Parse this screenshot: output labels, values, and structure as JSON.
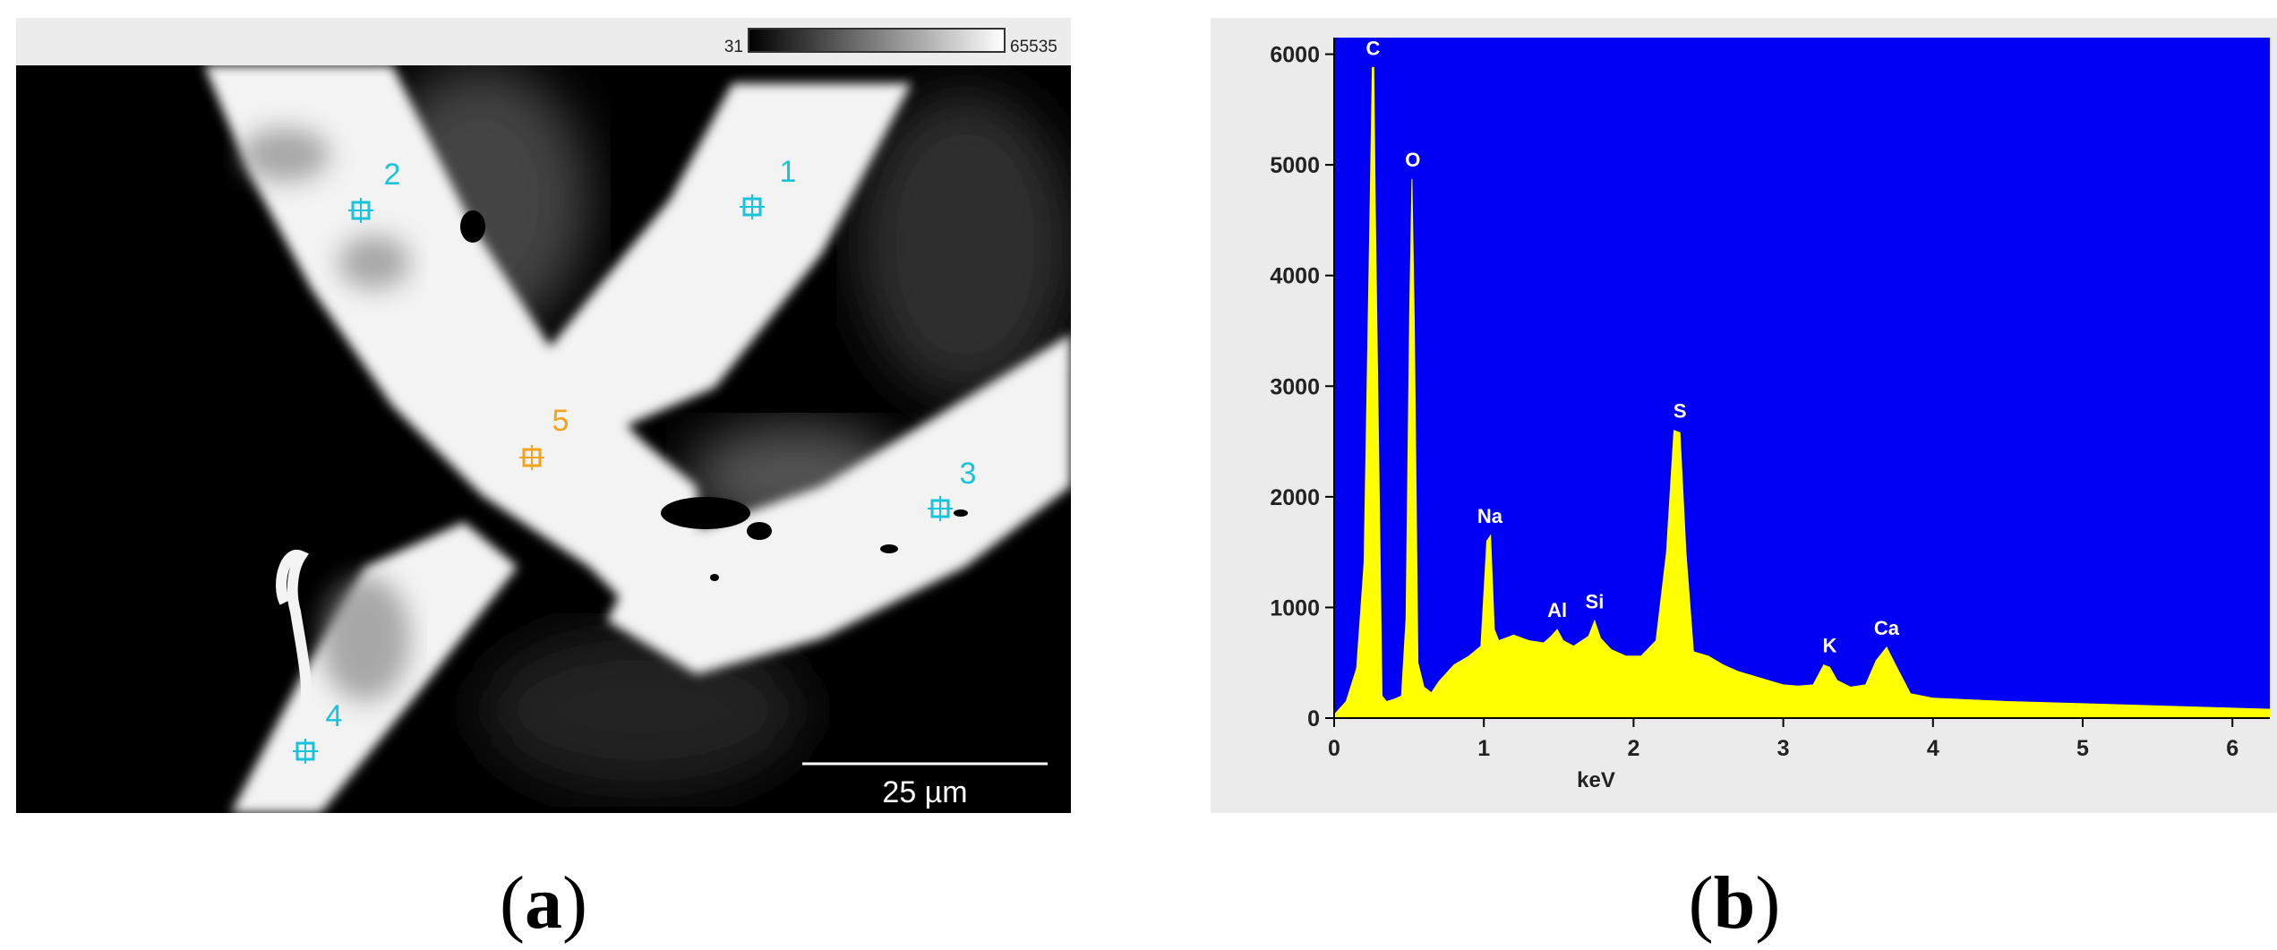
{
  "panel_a": {
    "colorbar": {
      "min_label": "31",
      "max_label": "65535"
    },
    "points": [
      {
        "label": "1",
        "color": "#19c3d9"
      },
      {
        "label": "2",
        "color": "#19c3d9"
      },
      {
        "label": "3",
        "color": "#19c3d9"
      },
      {
        "label": "4",
        "color": "#19c3d9"
      },
      {
        "label": "5",
        "color": "#f3a21e"
      }
    ],
    "scale_bar_label": "25 µm",
    "caption_open": "(",
    "caption_letter": "a",
    "caption_close": ")"
  },
  "panel_b": {
    "caption_open": "(",
    "caption_letter": "b",
    "caption_close": ")"
  },
  "colors": {
    "plot_bg": "#0000f5",
    "spectrum": "#ffff00",
    "frame_bg": "#ebebeb"
  },
  "chart_data": {
    "type": "area",
    "title": "",
    "xlabel": "keV",
    "ylabel": "",
    "xlim": [
      0,
      6.25
    ],
    "ylim": [
      0,
      6150
    ],
    "xticks": [
      0,
      1,
      2,
      3,
      4,
      5,
      6
    ],
    "yticks": [
      0,
      1000,
      2000,
      3000,
      4000,
      5000,
      6000
    ],
    "grid": false,
    "x": [
      0,
      0.08,
      0.15,
      0.2,
      0.24,
      0.255,
      0.265,
      0.275,
      0.32,
      0.35,
      0.4,
      0.45,
      0.48,
      0.505,
      0.52,
      0.535,
      0.56,
      0.6,
      0.65,
      0.7,
      0.8,
      0.9,
      0.98,
      1.02,
      1.045,
      1.07,
      1.1,
      1.2,
      1.3,
      1.4,
      1.45,
      1.49,
      1.53,
      1.6,
      1.7,
      1.74,
      1.78,
      1.85,
      1.95,
      2.05,
      2.15,
      2.22,
      2.27,
      2.31,
      2.35,
      2.4,
      2.5,
      2.6,
      2.7,
      2.8,
      2.9,
      3.0,
      3.1,
      3.2,
      3.27,
      3.31,
      3.36,
      3.45,
      3.55,
      3.62,
      3.69,
      3.75,
      3.85,
      4.0,
      4.5,
      5.0,
      5.5,
      6.0,
      6.25
    ],
    "y": [
      30,
      150,
      450,
      1400,
      4600,
      5880,
      5880,
      4600,
      200,
      150,
      170,
      200,
      900,
      3700,
      4870,
      3600,
      500,
      280,
      230,
      330,
      480,
      560,
      650,
      1600,
      1650,
      800,
      700,
      750,
      700,
      680,
      740,
      800,
      700,
      650,
      740,
      880,
      720,
      620,
      560,
      560,
      700,
      1500,
      2600,
      2580,
      1500,
      600,
      560,
      480,
      420,
      380,
      340,
      300,
      290,
      300,
      480,
      460,
      340,
      280,
      300,
      520,
      640,
      480,
      220,
      180,
      150,
      130,
      110,
      90,
      80
    ],
    "peaks": [
      {
        "label": "C",
        "x": 0.26,
        "y": 5880
      },
      {
        "label": "O",
        "x": 0.525,
        "y": 4870
      },
      {
        "label": "Na",
        "x": 1.04,
        "y": 1650
      },
      {
        "label": "Al",
        "x": 1.49,
        "y": 800
      },
      {
        "label": "Si",
        "x": 1.74,
        "y": 880
      },
      {
        "label": "S",
        "x": 2.31,
        "y": 2600
      },
      {
        "label": "K",
        "x": 3.31,
        "y": 480
      },
      {
        "label": "Ca",
        "x": 3.69,
        "y": 640
      }
    ]
  }
}
